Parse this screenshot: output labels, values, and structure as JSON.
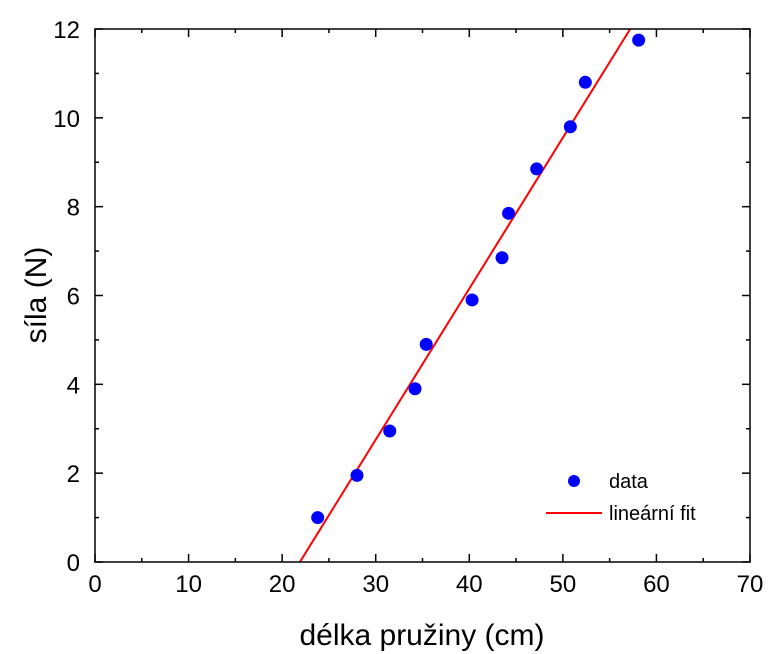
{
  "chart_data": {
    "type": "scatter",
    "xlabel": "délka pružiny (cm)",
    "ylabel": "síla (N)",
    "xlim": [
      0,
      70
    ],
    "ylim": [
      0,
      12
    ],
    "x_ticks": [
      0,
      10,
      20,
      30,
      40,
      50,
      60,
      70
    ],
    "y_ticks": [
      0,
      2,
      4,
      6,
      8,
      10,
      12
    ],
    "x_tick_labels": [
      "0",
      "10",
      "20",
      "30",
      "40",
      "50",
      "60",
      "70"
    ],
    "y_tick_labels": [
      "0",
      "2",
      "4",
      "6",
      "8",
      "10",
      "12"
    ],
    "grid": false,
    "legend_position": "bottom-right",
    "series": [
      {
        "name": "data",
        "type": "scatter",
        "color": "#0000ff",
        "x": [
          23.8,
          28.0,
          31.5,
          34.2,
          35.4,
          40.3,
          43.5,
          44.2,
          47.2,
          50.8,
          52.4,
          58.1
        ],
        "y": [
          1.0,
          1.95,
          2.95,
          3.9,
          4.9,
          5.9,
          6.85,
          7.85,
          8.85,
          9.8,
          10.8,
          11.75
        ]
      },
      {
        "name": "lineární fit",
        "type": "line",
        "color": "#ff0000",
        "x": [
          21.9,
          57.2
        ],
        "y": [
          0,
          12
        ]
      }
    ]
  }
}
